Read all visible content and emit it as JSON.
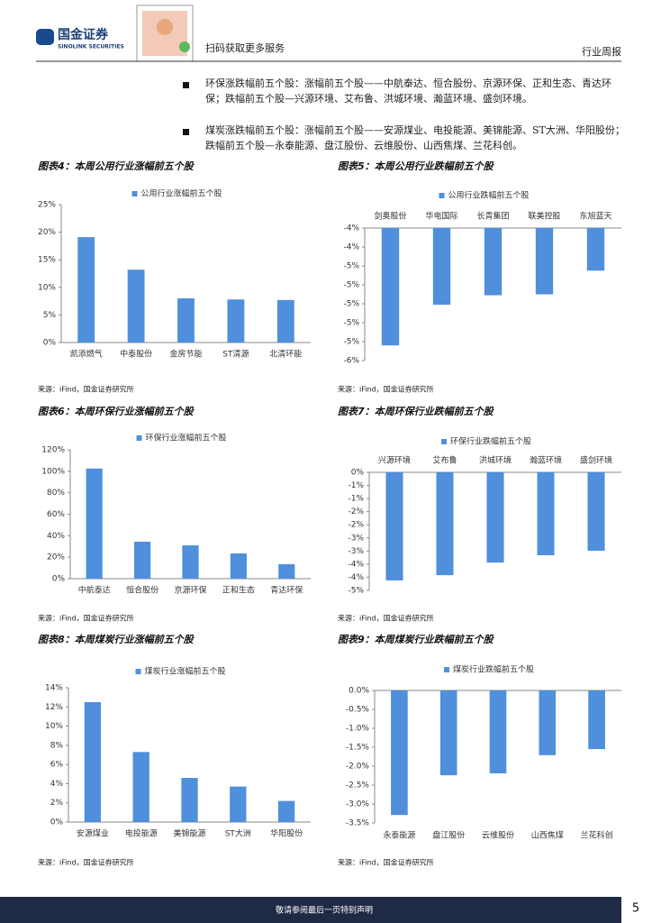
{
  "header": {
    "logo": "国金证券",
    "logo_en": "SINOLINK SECURITIES",
    "qr_text": "扫码获取更多服务",
    "report_type": "行业周报"
  },
  "bullets": [
    "环保涨跌幅前五个股：涨幅前五个股——中航泰达、恒合股份、京源环保、正和生态、青达环保；跌幅前五个股—兴源环境、艾布鲁、洪城环境、瀚蓝环境、盛剑环境。",
    "煤炭涨跌幅前五个股：涨幅前五个股——安源煤业、电投能源、美锦能源、ST大洲、华阳股份；跌幅前五个股—永泰能源、盘江股份、云维股份、山西焦煤、兰花科创。"
  ],
  "chart_data": [
    {
      "type": "bar",
      "title": "图表4：本周公用行业涨幅前五个股",
      "source": "来源：iFind，国金证券研究所",
      "categories": [
        "凯添燃气",
        "中泰股份",
        "金房节能",
        "ST清源",
        "北清环能"
      ],
      "series": [
        {
          "name": "公用行业涨幅前五个股",
          "color": "#4f8fdb",
          "values": [
            19.1,
            13.2,
            8.0,
            7.8,
            7.7
          ]
        }
      ],
      "ylim": [
        0,
        25
      ],
      "yticks": [
        {
          "value": 0,
          "label": "0%"
        },
        {
          "value": 5,
          "label": "5%"
        },
        {
          "value": 10,
          "label": "10%"
        },
        {
          "value": 15,
          "label": "15%"
        },
        {
          "value": 20,
          "label": "20%"
        },
        {
          "value": 25,
          "label": "25%"
        }
      ]
    },
    {
      "type": "bar",
      "title": "图表5：本周公用行业跌幅前五个股",
      "source": "来源：iFind，国金证券研究所",
      "categories": [
        "剑奥股份",
        "华电国际",
        "长青集团",
        "联美控股",
        "东旭蓝天"
      ],
      "series": [
        {
          "name": "公用行业跌幅前五个股",
          "color": "#4f8fdb",
          "values": [
            -5.34,
            -4.91,
            -4.81,
            -4.8,
            -4.55
          ]
        }
      ],
      "ylim": [
        -5.5,
        -4.1
      ],
      "yticks": [
        {
          "value": -4.1,
          "label": "-4%"
        },
        {
          "value": -4.3,
          "label": "-4%"
        },
        {
          "value": -4.5,
          "label": "-5%"
        },
        {
          "value": -4.7,
          "label": "-5%"
        },
        {
          "value": -4.9,
          "label": "-5%"
        },
        {
          "value": -5.1,
          "label": "-5%"
        },
        {
          "value": -5.3,
          "label": "-5%"
        },
        {
          "value": -5.5,
          "label": "-6%"
        }
      ]
    },
    {
      "type": "bar",
      "title": "图表6：本周环保行业涨幅前五个股",
      "source": "来源：iFind，国金证券研究所",
      "categories": [
        "中航泰达",
        "恒合股份",
        "京源环保",
        "正和生态",
        "青达环保"
      ],
      "series": [
        {
          "name": "环保行业涨幅前五个股",
          "color": "#4f8fdb",
          "values": [
            102.5,
            34.4,
            31,
            23.5,
            13.4
          ]
        }
      ],
      "ylim": [
        0,
        120
      ],
      "yticks": [
        {
          "value": 0,
          "label": "0%"
        },
        {
          "value": 20,
          "label": "20%"
        },
        {
          "value": 40,
          "label": "40%"
        },
        {
          "value": 60,
          "label": "60%"
        },
        {
          "value": 80,
          "label": "80%"
        },
        {
          "value": 100,
          "label": "100%"
        },
        {
          "value": 120,
          "label": "120%"
        }
      ]
    },
    {
      "type": "bar",
      "title": "图表7：本周环保行业跌幅前五个股",
      "source": "来源：iFind，国金证券研究所",
      "categories": [
        "兴源环境",
        "艾布鲁",
        "洪城环境",
        "瀚蓝环境",
        "盛剑环境"
      ],
      "series": [
        {
          "name": "环保行业跌幅前五个股",
          "color": "#4f8fdb",
          "values": [
            -4.12,
            -3.92,
            -3.44,
            -3.16,
            -2.99
          ]
        }
      ],
      "ylim": [
        -4.5,
        0
      ],
      "yticks": [
        {
          "value": 0,
          "label": "0%"
        },
        {
          "value": -0.5,
          "label": "-1%"
        },
        {
          "value": -1,
          "label": "-1%"
        },
        {
          "value": -1.5,
          "label": "-2%"
        },
        {
          "value": -2,
          "label": "-2%"
        },
        {
          "value": -2.5,
          "label": "-3%"
        },
        {
          "value": -3,
          "label": "-3%"
        },
        {
          "value": -3.5,
          "label": "-4%"
        },
        {
          "value": -4,
          "label": "-4%"
        },
        {
          "value": -4.5,
          "label": "-5%"
        }
      ]
    },
    {
      "type": "bar",
      "title": "图表8：本周煤炭行业涨幅前五个股",
      "source": "来源：iFind，国金证券研究所",
      "categories": [
        "安源煤业",
        "电投能源",
        "美锦能源",
        "ST大洲",
        "华阳股份"
      ],
      "series": [
        {
          "name": "煤炭行业涨幅前五个股",
          "color": "#4f8fdb",
          "values": [
            12.5,
            7.3,
            4.6,
            3.7,
            2.2
          ]
        }
      ],
      "ylim": [
        0,
        14
      ],
      "yticks": [
        {
          "value": 0,
          "label": "0%"
        },
        {
          "value": 2,
          "label": "2%"
        },
        {
          "value": 4,
          "label": "4%"
        },
        {
          "value": 6,
          "label": "6%"
        },
        {
          "value": 8,
          "label": "8%"
        },
        {
          "value": 10,
          "label": "10%"
        },
        {
          "value": 12,
          "label": "12%"
        },
        {
          "value": 14,
          "label": "14%"
        }
      ]
    },
    {
      "type": "bar",
      "title": "图表9：本周煤炭行业跌幅前五个股",
      "source": "来源：iFind，国金证券研究所",
      "categories": [
        "永泰能源",
        "盘江股份",
        "云维股份",
        "山西焦煤",
        "兰花科创"
      ],
      "series": [
        {
          "name": "煤炭行业跌幅前五个股",
          "color": "#4f8fdb",
          "values": [
            -3.29,
            -2.24,
            -2.19,
            -1.71,
            -1.55
          ]
        }
      ],
      "ylim": [
        -3.5,
        0
      ],
      "yticks": [
        {
          "value": 0,
          "label": "0.0%"
        },
        {
          "value": -0.5,
          "label": "-0.5%"
        },
        {
          "value": -1,
          "label": "-1.0%"
        },
        {
          "value": -1.5,
          "label": "-1.5%"
        },
        {
          "value": -2,
          "label": "-2.0%"
        },
        {
          "value": -2.5,
          "label": "-2.5%"
        },
        {
          "value": -3,
          "label": "-3.0%"
        },
        {
          "value": -3.5,
          "label": "-3.5%"
        }
      ]
    }
  ],
  "footer": {
    "disclaimer": "敬请参阅最后一页特别声明",
    "page": "5"
  }
}
